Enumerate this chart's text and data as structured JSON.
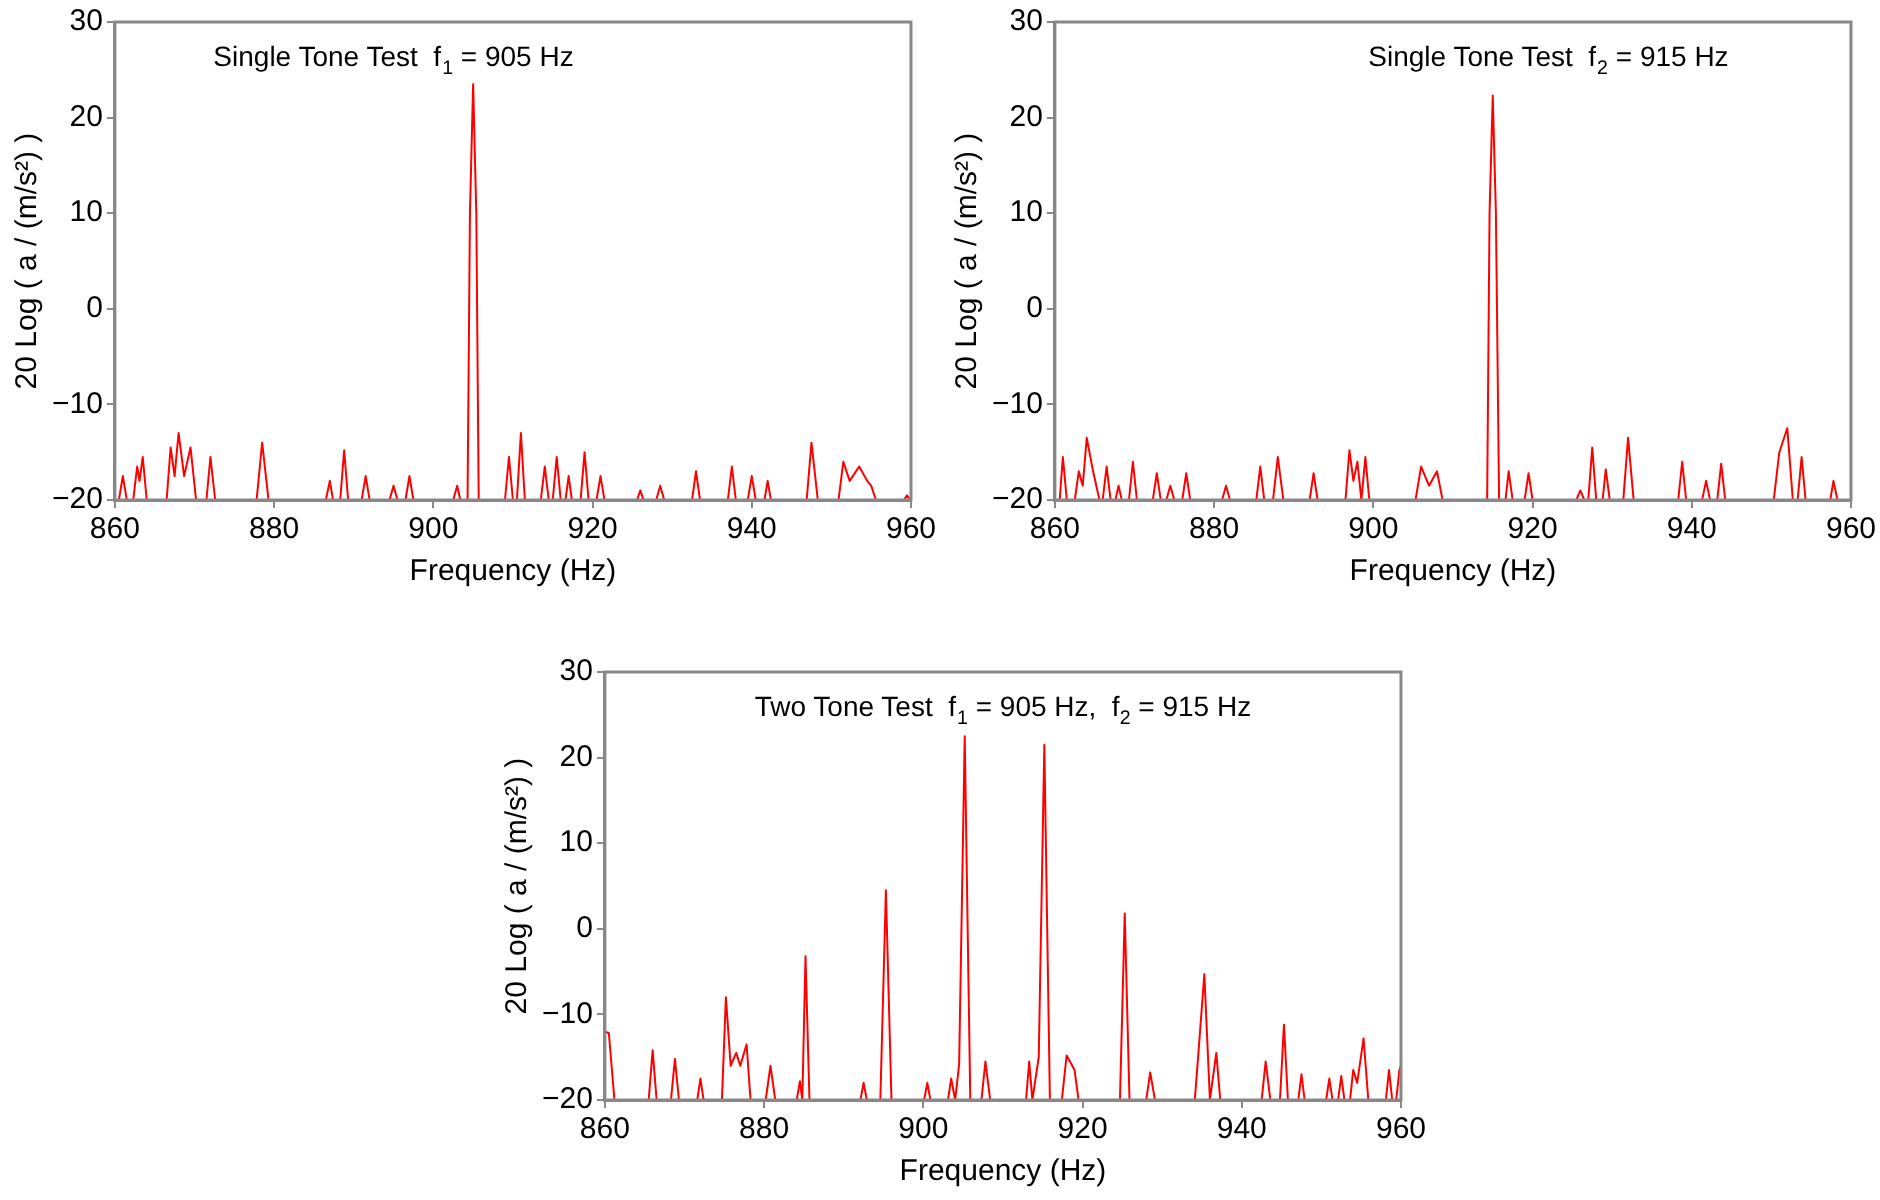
{
  "chart_data": [
    {
      "type": "line",
      "title": "Single Tone Test  f$_{1}$ = 905 Hz",
      "xlabel": "Frequency (Hz)",
      "ylabel": "20 Log ( a / (m/s²) )",
      "xlim": [
        860,
        960
      ],
      "xticks": [
        860,
        880,
        900,
        920,
        940,
        960
      ],
      "ylim": [
        -20,
        30
      ],
      "yticks": [
        -20,
        -10,
        0,
        10,
        20,
        30
      ],
      "grid": false,
      "legend": false,
      "marker": "none",
      "line_style": "solid",
      "series": [
        {
          "color": "#ff0000",
          "x": [
            860.5,
            861,
            861.5,
            862.3,
            862.8,
            863.1,
            863.5,
            864,
            866.5,
            867,
            867.5,
            868,
            868.7,
            869.5,
            870.2,
            871.5,
            872,
            872.6,
            877.8,
            878.5,
            879.3,
            886.5,
            887,
            887.4,
            888.3,
            888.8,
            889.3,
            891,
            891.5,
            892,
            894.5,
            895,
            895.5,
            896.5,
            897,
            897.5,
            902.5,
            903,
            903.4,
            904.3,
            904.6,
            905,
            905.4,
            905.7,
            909,
            909.5,
            910,
            910.5,
            911,
            911.5,
            913.5,
            914,
            914.5,
            915,
            915.5,
            916,
            916.6,
            917,
            917.4,
            918.5,
            919,
            919.5,
            920.5,
            921,
            921.5,
            925.6,
            926,
            926.4,
            928,
            928.5,
            929,
            932.5,
            933,
            933.5,
            937,
            937.5,
            938,
            939.5,
            940,
            940.5,
            941.6,
            942,
            942.4,
            946.9,
            947.5,
            948.3,
            950.9,
            951.5,
            952.3,
            953.5,
            954.5,
            955,
            955.6,
            959.1,
            959.5,
            959.9
          ],
          "values": [
            -20,
            -17.5,
            -20,
            -20,
            -16.5,
            -18,
            -15.5,
            -20,
            -20,
            -14.5,
            -17.5,
            -13,
            -17.5,
            -14.5,
            -20,
            -20,
            -15.5,
            -20,
            -20,
            -14,
            -20,
            -20,
            -18,
            -20,
            -20,
            -14.8,
            -20,
            -20,
            -17.5,
            -20,
            -20,
            -18.5,
            -20,
            -20,
            -17.5,
            -20,
            -20,
            -18.5,
            -20,
            -20,
            10,
            23.5,
            10,
            -20,
            -20,
            -15.5,
            -20,
            -20,
            -13,
            -20,
            -20,
            -16.5,
            -20,
            -20,
            -15.5,
            -20,
            -20,
            -17.5,
            -20,
            -20,
            -15,
            -20,
            -20,
            -17.5,
            -20,
            -20,
            -19,
            -20,
            -20,
            -18.5,
            -20,
            -20,
            -17,
            -20,
            -20,
            -16.5,
            -20,
            -20,
            -17.5,
            -20,
            -20,
            -18,
            -20,
            -20,
            -14,
            -20,
            -20,
            -16,
            -18,
            -16.5,
            -18,
            -18.5,
            -20,
            -20,
            -19.5,
            -20
          ]
        }
      ]
    },
    {
      "type": "line",
      "title": "Single Tone Test  f$_{2}$ = 915 Hz",
      "xlabel": "Frequency (Hz)",
      "ylabel": "20 Log ( a / (m/s²) )",
      "xlim": [
        860,
        960
      ],
      "xticks": [
        860,
        880,
        900,
        920,
        940,
        960
      ],
      "ylim": [
        -20,
        30
      ],
      "yticks": [
        -20,
        -10,
        0,
        10,
        20,
        30
      ],
      "grid": false,
      "legend": false,
      "marker": "none",
      "line_style": "solid",
      "series": [
        {
          "color": "#ff0000",
          "x": [
            860.6,
            861,
            861.5,
            862.5,
            863,
            863.5,
            864,
            864.8,
            865.6,
            866,
            866.5,
            867,
            867.6,
            868,
            868.4,
            869.3,
            869.8,
            870.3,
            872.3,
            872.8,
            873.3,
            874,
            874.5,
            875,
            876,
            876.5,
            877,
            881,
            881.5,
            882,
            885.3,
            885.8,
            886.3,
            887.4,
            888,
            888.7,
            892,
            892.5,
            893,
            896.5,
            897,
            897.5,
            898,
            898.5,
            899,
            899.5,
            905.3,
            906,
            907,
            908,
            908.7,
            914.3,
            914.6,
            915,
            915.4,
            915.8,
            916.6,
            917,
            917.5,
            919,
            919.5,
            920,
            925.5,
            926,
            926.5,
            927,
            927.5,
            928,
            928.8,
            929.2,
            929.7,
            931.4,
            932,
            932.7,
            938.3,
            938.8,
            939.3,
            941.3,
            941.8,
            942.3,
            943.2,
            943.7,
            944.2,
            950.3,
            951,
            952,
            952.7,
            953.3,
            953.8,
            954.3,
            957.4,
            957.8,
            958.3
          ],
          "values": [
            -20,
            -15.5,
            -20,
            -20,
            -17,
            -18.5,
            -13.5,
            -17,
            -20,
            -20,
            -16.5,
            -20,
            -20,
            -18.5,
            -20,
            -20,
            -16,
            -20,
            -20,
            -17.2,
            -20,
            -20,
            -18.5,
            -20,
            -20,
            -17.2,
            -20,
            -20,
            -18.5,
            -20,
            -20,
            -16.5,
            -20,
            -20,
            -15.5,
            -20,
            -20,
            -17.2,
            -20,
            -20,
            -14.8,
            -18,
            -16,
            -20,
            -15.5,
            -20,
            -20,
            -16.5,
            -18.5,
            -17,
            -20,
            -20,
            10,
            22.3,
            10,
            -20,
            -20,
            -17,
            -20,
            -20,
            -17.2,
            -20,
            -20,
            -19,
            -20,
            -20,
            -14.5,
            -20,
            -20,
            -16.8,
            -20,
            -20,
            -13.5,
            -20,
            -20,
            -16,
            -20,
            -20,
            -18,
            -20,
            -20,
            -16.2,
            -20,
            -20,
            -15,
            -12.5,
            -20,
            -20,
            -15.5,
            -20,
            -20,
            -18,
            -20
          ]
        }
      ]
    },
    {
      "type": "line",
      "title": "Two Tone Test  f$_{1}$ = 905 Hz,  f$_{2}$ = 915 Hz",
      "xlabel": "Frequency (Hz)",
      "ylabel": "20 Log ( a / (m/s²) )",
      "xlim": [
        860,
        960
      ],
      "xticks": [
        860,
        880,
        900,
        920,
        940,
        960
      ],
      "ylim": [
        -20,
        30
      ],
      "yticks": [
        -20,
        -10,
        0,
        10,
        20,
        30
      ],
      "grid": false,
      "legend": false,
      "marker": "none",
      "line_style": "solid",
      "series": [
        {
          "color": "#ff0000",
          "x": [
            860,
            860.5,
            861.2,
            865.5,
            866,
            866.5,
            868.3,
            868.8,
            869.3,
            871.6,
            872,
            872.4,
            874.7,
            875.2,
            875.8,
            876.5,
            877,
            877.8,
            878.3,
            880.2,
            880.8,
            881.4,
            884.1,
            884.5,
            884.8,
            885.2,
            885.7,
            892.1,
            892.5,
            892.9,
            894.6,
            895.3,
            896,
            900.1,
            900.5,
            900.9,
            903.1,
            903.5,
            904,
            904.5,
            905.2,
            905.9,
            907.3,
            907.8,
            908.4,
            912.9,
            913.3,
            913.7,
            914.5,
            915.2,
            915.9,
            917.4,
            918,
            919,
            919.5,
            924.7,
            925.3,
            925.9,
            928,
            928.5,
            929.1,
            934.1,
            934.5,
            935.3,
            936,
            936.8,
            937.3,
            942.5,
            943,
            943.6,
            944.8,
            945.3,
            945.8,
            947.1,
            947.5,
            947.9,
            950.6,
            951,
            951.4,
            952.1,
            952.5,
            952.9,
            953.6,
            954,
            954.5,
            955.3,
            955.9,
            958.1,
            958.5,
            958.9,
            959.4,
            959.8,
            960
          ],
          "values": [
            -12,
            -12.2,
            -20,
            -20,
            -14.2,
            -20,
            -20,
            -15.2,
            -20,
            -20,
            -17.5,
            -20,
            -20,
            -8,
            -16,
            -14.5,
            -16,
            -13.5,
            -20,
            -20,
            -16,
            -20,
            -20,
            -17.8,
            -20,
            -3.2,
            -20,
            -20,
            -18,
            -20,
            -20,
            4.5,
            -20,
            -20,
            -18,
            -20,
            -20,
            -17.5,
            -20,
            -15.8,
            22.5,
            -20,
            -20,
            -15.5,
            -20,
            -20,
            -15.5,
            -20,
            -15,
            21.5,
            -20,
            -20,
            -14.8,
            -16.5,
            -20,
            -20,
            1.8,
            -20,
            -20,
            -16.8,
            -20,
            -20,
            -15.2,
            -5.3,
            -20,
            -14.5,
            -20,
            -20,
            -15.5,
            -20,
            -20,
            -11.2,
            -20,
            -20,
            -17,
            -20,
            -20,
            -17.5,
            -20,
            -20,
            -17.2,
            -20,
            -20,
            -16.5,
            -18,
            -12.8,
            -20,
            -20,
            -16.5,
            -20,
            -20,
            -16.5,
            -16
          ]
        }
      ]
    }
  ]
}
